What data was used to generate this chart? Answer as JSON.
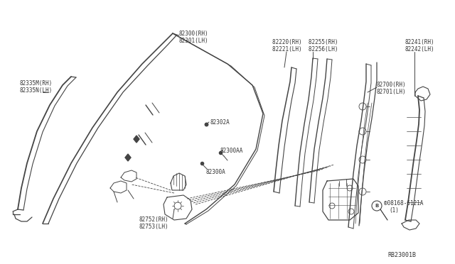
{
  "bg_color": "#ffffff",
  "line_color": "#444444",
  "text_color": "#333333",
  "diagram_ref": "RB23001B",
  "font_size": 5.5,
  "parts": [
    "82300(RH)",
    "82301(LH)",
    "82335M(RH)",
    "82335N(LH)",
    "82302A",
    "82300AA",
    "82300A",
    "82752(RH)",
    "82753(LH)",
    "82220(RH)",
    "82221(LH)",
    "82255(RH)",
    "82256(LH)",
    "82700(RH)",
    "82701(LH)",
    "82241(RH)",
    "82242(LH)",
    "08168-6121A"
  ]
}
